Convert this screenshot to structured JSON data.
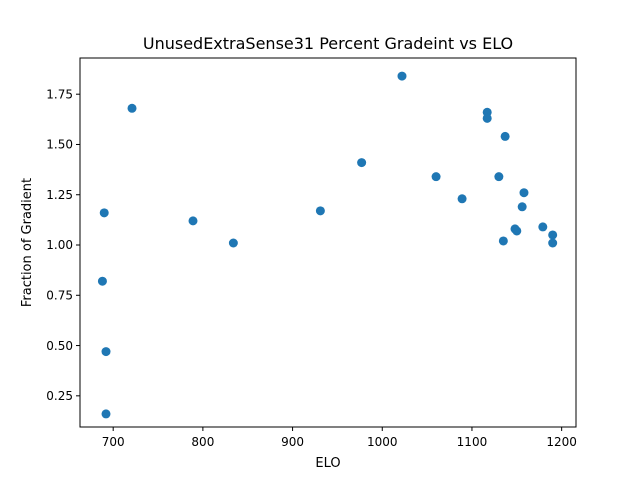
{
  "chart_data": {
    "type": "scatter",
    "title": "UnusedExtraSense31 Percent Gradeint vs ELO",
    "xlabel": "ELO",
    "ylabel": "Fraction of Gradient",
    "xlim": [
      663,
      1216
    ],
    "ylim": [
      0.095,
      1.93
    ],
    "x_ticks": [
      700,
      800,
      900,
      1000,
      1100,
      1200
    ],
    "x_tick_labels": [
      "700",
      "800",
      "900",
      "1000",
      "1100",
      "1200"
    ],
    "y_ticks": [
      0.25,
      0.5,
      0.75,
      1.0,
      1.25,
      1.5,
      1.75
    ],
    "y_tick_labels": [
      "0.25",
      "0.50",
      "0.75",
      "1.00",
      "1.25",
      "1.50",
      "1.75"
    ],
    "grid": false,
    "marker_color": "#1f77b4",
    "points": [
      {
        "x": 688,
        "y": 0.82
      },
      {
        "x": 690,
        "y": 1.16
      },
      {
        "x": 692,
        "y": 0.47
      },
      {
        "x": 692,
        "y": 0.16
      },
      {
        "x": 721,
        "y": 1.68
      },
      {
        "x": 789,
        "y": 1.12
      },
      {
        "x": 834,
        "y": 1.01
      },
      {
        "x": 931,
        "y": 1.17
      },
      {
        "x": 977,
        "y": 1.41
      },
      {
        "x": 1022,
        "y": 1.84
      },
      {
        "x": 1060,
        "y": 1.34
      },
      {
        "x": 1089,
        "y": 1.23
      },
      {
        "x": 1117,
        "y": 1.66
      },
      {
        "x": 1117,
        "y": 1.63
      },
      {
        "x": 1130,
        "y": 1.34
      },
      {
        "x": 1135,
        "y": 1.02
      },
      {
        "x": 1137,
        "y": 1.54
      },
      {
        "x": 1148,
        "y": 1.08
      },
      {
        "x": 1150,
        "y": 1.07
      },
      {
        "x": 1156,
        "y": 1.19
      },
      {
        "x": 1158,
        "y": 1.26
      },
      {
        "x": 1179,
        "y": 1.09
      },
      {
        "x": 1190,
        "y": 1.05
      },
      {
        "x": 1190,
        "y": 1.01
      }
    ]
  }
}
